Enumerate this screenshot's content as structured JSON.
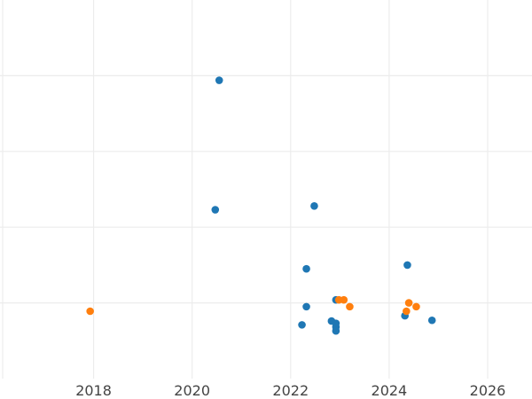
{
  "chart_data": {
    "type": "scatter",
    "title": "",
    "xlabel": "",
    "ylabel": "",
    "x_ticks": [
      2018,
      2020,
      2022,
      2024,
      2026
    ],
    "xlim": [
      2016.1,
      2026.9
    ],
    "ylim": [
      0,
      5
    ],
    "y_gridlines": [
      1,
      2,
      3,
      4
    ],
    "grid": true,
    "legend": false,
    "series": [
      {
        "color": "#1f77b4",
        "points": [
          {
            "x": 2020.55,
            "y": 3.94
          },
          {
            "x": 2020.47,
            "y": 2.23
          },
          {
            "x": 2022.48,
            "y": 2.28
          },
          {
            "x": 2022.32,
            "y": 1.45
          },
          {
            "x": 2024.37,
            "y": 1.5
          },
          {
            "x": 2022.32,
            "y": 0.95
          },
          {
            "x": 2022.23,
            "y": 0.71
          },
          {
            "x": 2022.83,
            "y": 0.76
          },
          {
            "x": 2022.92,
            "y": 0.73
          },
          {
            "x": 2022.92,
            "y": 0.68
          },
          {
            "x": 2022.92,
            "y": 0.63
          },
          {
            "x": 2022.92,
            "y": 1.04
          },
          {
            "x": 2024.32,
            "y": 0.83
          },
          {
            "x": 2024.87,
            "y": 0.77
          }
        ]
      },
      {
        "color": "#ff7f0e",
        "points": [
          {
            "x": 2017.93,
            "y": 0.89
          },
          {
            "x": 2022.98,
            "y": 1.04
          },
          {
            "x": 2023.08,
            "y": 1.04
          },
          {
            "x": 2023.2,
            "y": 0.95
          },
          {
            "x": 2024.4,
            "y": 1.0
          },
          {
            "x": 2024.55,
            "y": 0.95
          },
          {
            "x": 2024.35,
            "y": 0.89
          }
        ]
      }
    ]
  }
}
